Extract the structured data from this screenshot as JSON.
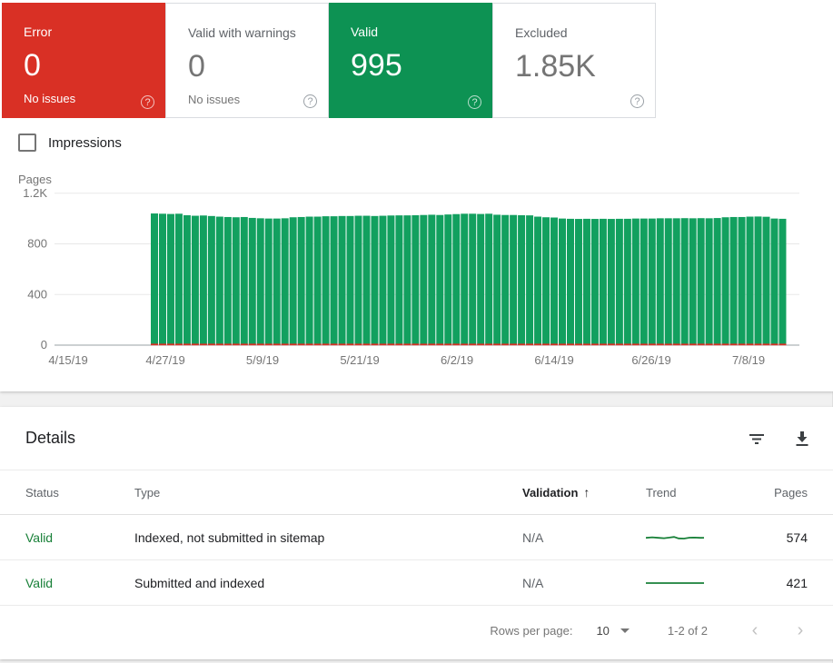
{
  "colors": {
    "error_red": "#d93025",
    "valid_green": "#0d9253",
    "bar_green": "#12a05f",
    "table_valid_green": "#188038",
    "sparkline_green": "#188038",
    "gridline": "#e8e8e8",
    "axis_line": "#9aa0a6",
    "tick_text": "#757575"
  },
  "cards": [
    {
      "label": "Error",
      "value": "0",
      "sub": "No issues",
      "selected": true,
      "color": "#d93025"
    },
    {
      "label": "Valid with warnings",
      "value": "0",
      "sub": "No issues",
      "selected": false,
      "color": ""
    },
    {
      "label": "Valid",
      "value": "995",
      "sub": "",
      "selected": true,
      "color": "#0d9253"
    },
    {
      "label": "Excluded",
      "value": "1.85K",
      "sub": "",
      "selected": false,
      "color": ""
    }
  ],
  "impressions_label": "Impressions",
  "chart_data": {
    "type": "bar",
    "title": "Pages",
    "ylabel": "Pages",
    "xlabel": "",
    "ylim": [
      0,
      1200
    ],
    "yticks": [
      0,
      400,
      800,
      1200
    ],
    "ytick_labels": [
      "0",
      "400",
      "800",
      "1.2K"
    ],
    "xtick_labels": [
      "4/15/19",
      "4/27/19",
      "5/9/19",
      "5/21/19",
      "6/2/19",
      "6/14/19",
      "6/26/19",
      "7/8/19"
    ],
    "xtick_days": [
      0,
      12,
      24,
      36,
      48,
      60,
      72,
      84
    ],
    "x_axis_start_label": "4/15/19",
    "bars_start_day": 10,
    "grid": true,
    "legend_position": "none",
    "series": [
      {
        "name": "Valid",
        "color": "#12a05f",
        "values": [
          1040,
          1038,
          1036,
          1038,
          1026,
          1022,
          1024,
          1020,
          1015,
          1012,
          1010,
          1012,
          1005,
          1002,
          1000,
          1000,
          1002,
          1010,
          1012,
          1015,
          1015,
          1018,
          1018,
          1020,
          1020,
          1022,
          1022,
          1020,
          1022,
          1024,
          1025,
          1025,
          1026,
          1028,
          1030,
          1028,
          1032,
          1035,
          1038,
          1038,
          1036,
          1038,
          1030,
          1028,
          1028,
          1026,
          1025,
          1015,
          1010,
          1008,
          1000,
          998,
          997,
          998,
          997,
          998,
          997,
          998,
          998,
          1000,
          1000,
          1000,
          1002,
          1002,
          1002,
          1003,
          1002,
          1003,
          1002,
          1004,
          1010,
          1012,
          1012,
          1015,
          1016,
          1014,
          1000,
          998
        ]
      },
      {
        "name": "Error",
        "color": "#d93025",
        "constant": 0
      }
    ]
  },
  "details": {
    "title": "Details",
    "columns": {
      "status": "Status",
      "type": "Type",
      "validation": "Validation",
      "trend": "Trend",
      "pages": "Pages"
    },
    "sorted_column": "Validation",
    "sort_direction": "asc",
    "rows": [
      {
        "status": "Valid",
        "type": "Indexed, not submitted in sitemap",
        "validation": "N/A",
        "pages": "574",
        "trend_points": [
          [
            0,
            4.2
          ],
          [
            7,
            3.6
          ],
          [
            14,
            4.2
          ],
          [
            20,
            4.6
          ],
          [
            26,
            3.9
          ],
          [
            31,
            3.2
          ],
          [
            36,
            4.8
          ],
          [
            42,
            5.0
          ],
          [
            48,
            4.0
          ],
          [
            54,
            3.9
          ],
          [
            60,
            4.2
          ],
          [
            64,
            4.1
          ]
        ]
      },
      {
        "status": "Valid",
        "type": "Submitted and indexed",
        "validation": "N/A",
        "pages": "421",
        "trend_points": [
          [
            0,
            4
          ],
          [
            64,
            4
          ]
        ]
      }
    ],
    "pagination": {
      "rows_per_page_label": "Rows per page:",
      "rows_per_page_value": "10",
      "range_label": "1-2 of 2"
    }
  }
}
